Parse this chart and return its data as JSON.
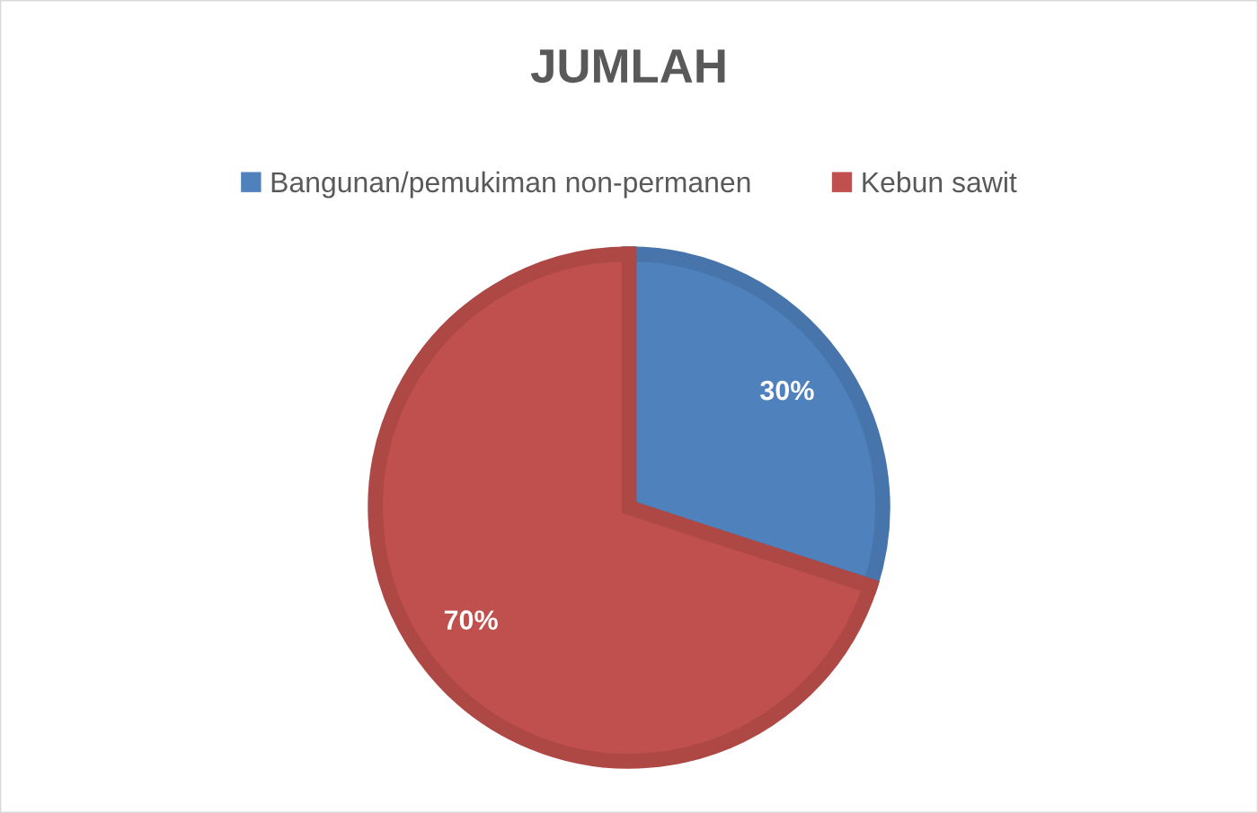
{
  "chart_data": {
    "type": "pie",
    "title": "JUMLAH",
    "categories": [
      "Bangunan/pemukiman non-permanen",
      "Kebun sawit"
    ],
    "values": [
      30,
      70
    ],
    "colors": [
      "#4f81bd",
      "#c0504d"
    ],
    "value_labels": [
      "30%",
      "70%"
    ],
    "legend": "top"
  }
}
